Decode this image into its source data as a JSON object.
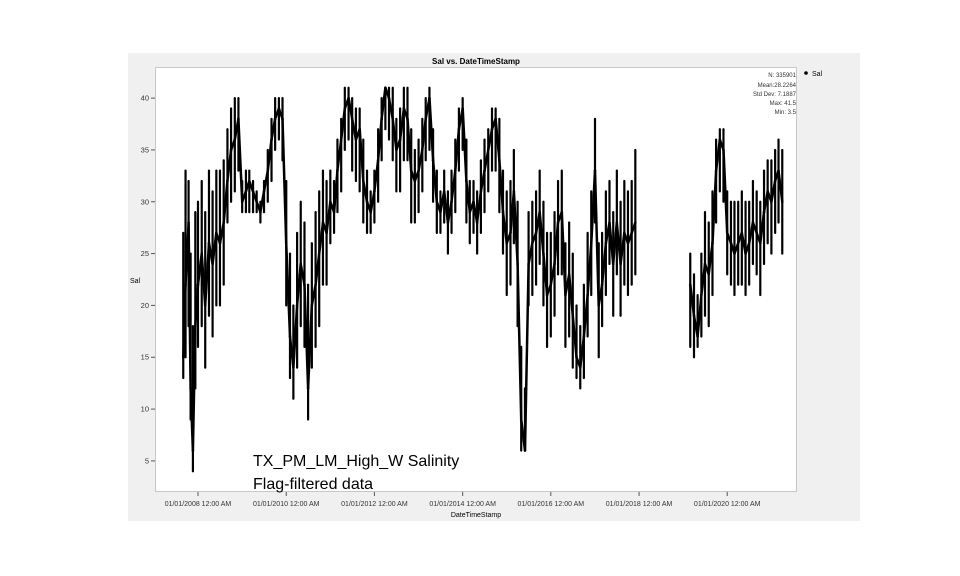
{
  "chart_data": {
    "type": "scatter",
    "title": "Sal vs. DateTimeStamp",
    "xlabel": "DateTimeStamp",
    "ylabel": "Sal",
    "xlim": [
      "2007-01-10",
      "2021-08-01"
    ],
    "ylim": [
      2,
      43
    ],
    "x_ticks": [
      "01/01/2008 12:00 AM",
      "01/01/2010 12:00 AM",
      "01/01/2012 12:00 AM",
      "01/01/2014 12:00 AM",
      "01/01/2016 12:00 AM",
      "01/01/2018 12:00 AM",
      "01/01/2020 12:00 AM"
    ],
    "y_ticks": [
      5,
      10,
      15,
      20,
      25,
      30,
      35,
      40
    ],
    "grid": false,
    "legend_position": "top-right outside",
    "series": [
      {
        "name": "Sal",
        "color": "#000000",
        "x": [
          "2007-09-01",
          "2007-09-20",
          "2007-10-15",
          "2007-11-01",
          "2007-11-20",
          "2007-12-10",
          "2008-01-01",
          "2008-02-01",
          "2008-03-01",
          "2008-04-01",
          "2008-05-01",
          "2008-06-01",
          "2008-07-01",
          "2008-08-01",
          "2008-09-01",
          "2008-10-01",
          "2008-11-01",
          "2008-12-01",
          "2009-01-01",
          "2009-02-01",
          "2009-03-01",
          "2009-04-01",
          "2009-05-01",
          "2009-06-01",
          "2009-07-01",
          "2009-08-01",
          "2009-09-01",
          "2009-10-01",
          "2009-11-01",
          "2009-12-01",
          "2010-01-01",
          "2010-02-01",
          "2010-03-01",
          "2010-04-01",
          "2010-05-01",
          "2010-06-01",
          "2010-07-01",
          "2010-08-01",
          "2010-09-01",
          "2010-10-01",
          "2010-11-01",
          "2010-12-01",
          "2011-01-01",
          "2011-02-01",
          "2011-03-01",
          "2011-04-01",
          "2011-05-01",
          "2011-06-01",
          "2011-07-01",
          "2011-08-01",
          "2011-09-01",
          "2011-10-01",
          "2011-11-01",
          "2011-12-01",
          "2012-01-01",
          "2012-02-01",
          "2012-03-01",
          "2012-04-01",
          "2012-05-01",
          "2012-06-01",
          "2012-07-01",
          "2012-08-01",
          "2012-09-01",
          "2012-10-01",
          "2012-11-01",
          "2012-12-01",
          "2013-01-01",
          "2013-02-01",
          "2013-03-01",
          "2013-04-01",
          "2013-05-01",
          "2013-06-01",
          "2013-07-01",
          "2013-08-01",
          "2013-09-01",
          "2013-10-01",
          "2013-11-01",
          "2013-12-01",
          "2014-01-01",
          "2014-02-01",
          "2014-03-01",
          "2014-04-01",
          "2014-05-01",
          "2014-06-01",
          "2014-07-01",
          "2014-08-01",
          "2014-09-01",
          "2014-10-01",
          "2014-11-01",
          "2014-12-01",
          "2015-01-01",
          "2015-02-01",
          "2015-03-01",
          "2015-04-01",
          "2015-05-01",
          "2015-06-01",
          "2015-07-01",
          "2015-08-01",
          "2015-09-01",
          "2015-10-01",
          "2015-11-01",
          "2015-12-01",
          "2016-01-01",
          "2016-02-01",
          "2016-03-01",
          "2016-04-01",
          "2016-05-01",
          "2016-06-01",
          "2016-07-01",
          "2016-08-01",
          "2016-09-01",
          "2016-10-01",
          "2016-11-01",
          "2016-12-01",
          "2017-01-01",
          "2017-02-01",
          "2017-03-01",
          "2017-04-01",
          "2017-05-01",
          "2017-06-01",
          "2017-07-01",
          "2017-08-01",
          "2017-09-01",
          "2017-10-01",
          "2017-11-01",
          "2017-12-01",
          "2019-03-01",
          "2019-04-01",
          "2019-05-01",
          "2019-06-01",
          "2019-07-01",
          "2019-08-01",
          "2019-09-01",
          "2019-10-01",
          "2019-11-01",
          "2019-12-01",
          "2020-01-01",
          "2020-02-01",
          "2020-03-01",
          "2020-04-01",
          "2020-05-01",
          "2020-06-01",
          "2020-07-01",
          "2020-08-01",
          "2020-09-01",
          "2020-10-01",
          "2020-11-01",
          "2020-12-01",
          "2021-01-01",
          "2021-02-01",
          "2021-03-01",
          "2021-04-01"
        ],
        "y": [
          15,
          22,
          28,
          12,
          6,
          18,
          22,
          25,
          20,
          26,
          24,
          27,
          26,
          28,
          32,
          35,
          36,
          38,
          30,
          31,
          32,
          31,
          30,
          29,
          31,
          33,
          36,
          38,
          39,
          38,
          26,
          17,
          14,
          20,
          24,
          22,
          12,
          20,
          22,
          25,
          28,
          27,
          30,
          29,
          33,
          36,
          39,
          40,
          38,
          36,
          37,
          32,
          30,
          29,
          31,
          34,
          38,
          41,
          40,
          38,
          35,
          36,
          39,
          38,
          33,
          32,
          33,
          35,
          38,
          40,
          34,
          30,
          29,
          31,
          28,
          30,
          33,
          37,
          39,
          32,
          29,
          30,
          28,
          31,
          33,
          35,
          37,
          38,
          34,
          29,
          26,
          27,
          31,
          24,
          9,
          6,
          24,
          26,
          27,
          29,
          25,
          21,
          22,
          24,
          28,
          29,
          21,
          23,
          19,
          15,
          14,
          17,
          21,
          26,
          33,
          20,
          22,
          26,
          28,
          24,
          28,
          24,
          27,
          26,
          27,
          28,
          22,
          19,
          17,
          21,
          24,
          23,
          26,
          33,
          36,
          35,
          27,
          26,
          25,
          26,
          27,
          25,
          26,
          28,
          27,
          26,
          29,
          31,
          30,
          32,
          33,
          30
        ],
        "band_low": [
          13,
          15,
          18,
          9,
          4,
          12,
          16,
          18,
          14,
          19,
          17,
          20,
          20,
          22,
          28,
          30,
          31,
          33,
          29,
          29,
          29,
          29,
          29,
          28,
          29,
          30,
          32,
          35,
          36,
          34,
          20,
          13,
          11,
          14,
          18,
          16,
          9,
          14,
          16,
          18,
          22,
          22,
          26,
          27,
          29,
          31,
          35,
          36,
          33,
          32,
          31,
          28,
          27,
          27,
          28,
          30,
          34,
          37,
          36,
          34,
          31,
          31,
          34,
          34,
          28,
          28,
          29,
          31,
          34,
          35,
          30,
          27,
          27,
          28,
          25,
          27,
          29,
          33,
          35,
          28,
          26,
          27,
          25,
          27,
          29,
          31,
          33,
          33,
          29,
          25,
          21,
          22,
          26,
          18,
          6,
          6,
          20,
          21,
          22,
          24,
          20,
          16,
          17,
          19,
          23,
          23,
          16,
          17,
          14,
          13,
          12,
          13,
          17,
          21,
          28,
          15,
          18,
          21,
          24,
          19,
          23,
          19,
          22,
          21,
          22,
          23,
          16,
          15,
          16,
          17,
          19,
          18,
          21,
          28,
          31,
          30,
          23,
          22,
          21,
          22,
          22,
          21,
          22,
          24,
          23,
          21,
          24,
          26,
          25,
          27,
          28,
          25
        ],
        "band_high": [
          27,
          33,
          32,
          25,
          18,
          29,
          30,
          32,
          29,
          33,
          31,
          33,
          33,
          34,
          37,
          39,
          40,
          40,
          32,
          33,
          33,
          32,
          31,
          30,
          32,
          35,
          38,
          40,
          40,
          40,
          32,
          25,
          20,
          27,
          30,
          28,
          22,
          26,
          29,
          31,
          33,
          32,
          33,
          32,
          36,
          38,
          41,
          41,
          40,
          39,
          39,
          36,
          33,
          31,
          33,
          37,
          40,
          41,
          41,
          41,
          38,
          39,
          41,
          41,
          37,
          35,
          36,
          38,
          40,
          41,
          37,
          33,
          31,
          33,
          31,
          33,
          36,
          39,
          40,
          36,
          32,
          32,
          31,
          34,
          36,
          37,
          39,
          39,
          38,
          33,
          31,
          32,
          35,
          30,
          16,
          12,
          29,
          30,
          31,
          33,
          30,
          27,
          27,
          29,
          32,
          33,
          26,
          28,
          25,
          20,
          18,
          22,
          27,
          31,
          38,
          26,
          27,
          31,
          32,
          29,
          33,
          30,
          32,
          31,
          32,
          35,
          25,
          23,
          21,
          25,
          29,
          28,
          31,
          36,
          37,
          37,
          31,
          30,
          30,
          30,
          31,
          30,
          30,
          32,
          31,
          30,
          33,
          34,
          34,
          35,
          36,
          35
        ]
      }
    ],
    "annotations": {
      "stats": [
        "N: 335901",
        "Mean:28.2264",
        "Std Dev: 7.1887",
        "Max: 41.5",
        "Min: 3.5"
      ],
      "caption_line1": "TX_PM_LM_High_W Salinity",
      "caption_line2": "Flag-filtered data"
    }
  }
}
